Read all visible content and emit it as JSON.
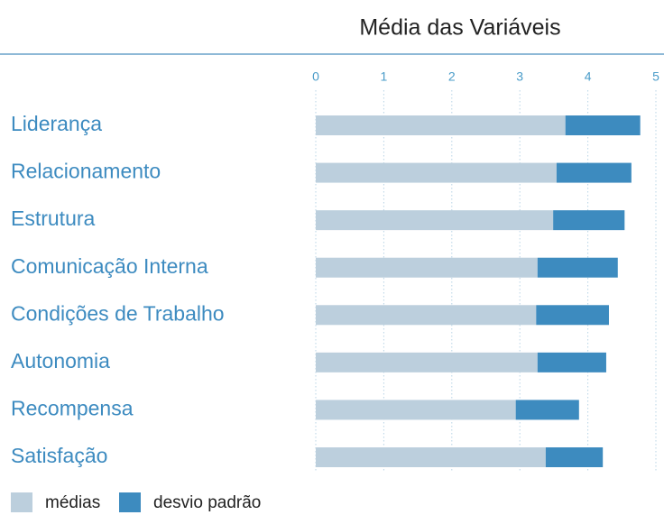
{
  "chart_data": {
    "type": "stacked_barh",
    "title": "Média das Variáveis",
    "categories": [
      "Liderança",
      "Relacionamento",
      "Estrutura",
      "Comunicação Interna",
      "Condições de Trabalho",
      "Autonomia",
      "Recompensa",
      "Satisfação"
    ],
    "series": [
      {
        "name": "médias",
        "color": "#bccfdd",
        "values": [
          3.67,
          3.54,
          3.49,
          3.26,
          3.24,
          3.26,
          2.94,
          3.38
        ]
      },
      {
        "name": "desvio padrão",
        "color": "#3d8bbf",
        "values": [
          1.1,
          1.1,
          1.05,
          1.18,
          1.07,
          1.01,
          0.93,
          0.84
        ]
      }
    ],
    "xlim": [
      0,
      5
    ],
    "xticks": [
      0,
      1,
      2,
      3,
      4,
      5
    ],
    "grid": true,
    "legend": "bottom-left"
  }
}
